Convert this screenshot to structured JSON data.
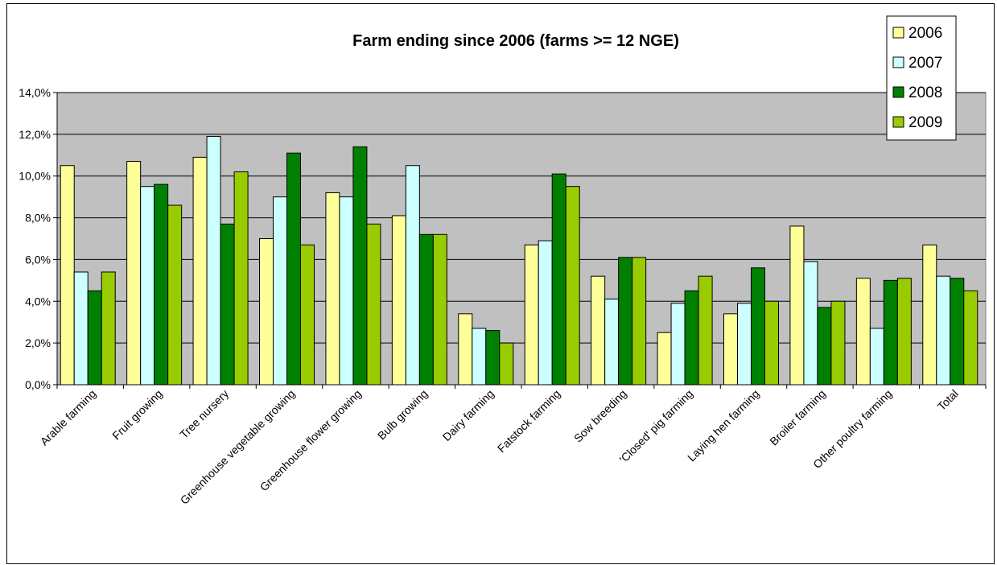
{
  "chart_data": {
    "type": "bar",
    "title": "Farm ending since 2006 (farms >= 12 NGE)",
    "xlabel": "",
    "ylabel": "",
    "ylim": [
      0,
      14
    ],
    "y_tick_labels": [
      "0,0%",
      "2,0%",
      "4,0%",
      "6,0%",
      "8,0%",
      "10,0%",
      "12,0%",
      "14,0%"
    ],
    "y_ticks": [
      0,
      2,
      4,
      6,
      8,
      10,
      12,
      14
    ],
    "grid": true,
    "legend_position": "top-right",
    "categories": [
      "Arable farming",
      "Fruit growing",
      "Tree nursery",
      "Greenhouse vegetable growing",
      "Greenhouse flower growing",
      "Bulb growing",
      "Dairy farming",
      "Fatstock farming",
      "Sow breeding",
      "'Closed' pig farming",
      "Laying hen farming",
      "Broiler farming",
      "Other poultry farming",
      "Total"
    ],
    "series": [
      {
        "name": "2006",
        "color": "#FFFF99",
        "values": [
          10.5,
          10.7,
          10.9,
          7.0,
          9.2,
          8.1,
          3.4,
          6.7,
          5.2,
          2.5,
          3.4,
          7.6,
          5.1,
          6.7
        ]
      },
      {
        "name": "2007",
        "color": "#CCFFFF",
        "values": [
          5.4,
          9.5,
          11.9,
          9.0,
          9.0,
          10.5,
          2.7,
          6.9,
          4.1,
          3.9,
          3.9,
          5.9,
          2.7,
          5.2
        ]
      },
      {
        "name": "2008",
        "color": "#008000",
        "values": [
          4.5,
          9.6,
          7.7,
          11.1,
          11.4,
          7.2,
          2.6,
          10.1,
          6.1,
          4.5,
          5.6,
          3.7,
          5.0,
          5.1
        ]
      },
      {
        "name": "2009",
        "color": "#99CC00",
        "values": [
          5.4,
          8.6,
          10.2,
          6.7,
          7.7,
          7.2,
          2.0,
          9.5,
          6.1,
          5.2,
          4.0,
          4.0,
          5.1,
          4.5
        ]
      }
    ],
    "plot_background": "#C0C0C0"
  }
}
